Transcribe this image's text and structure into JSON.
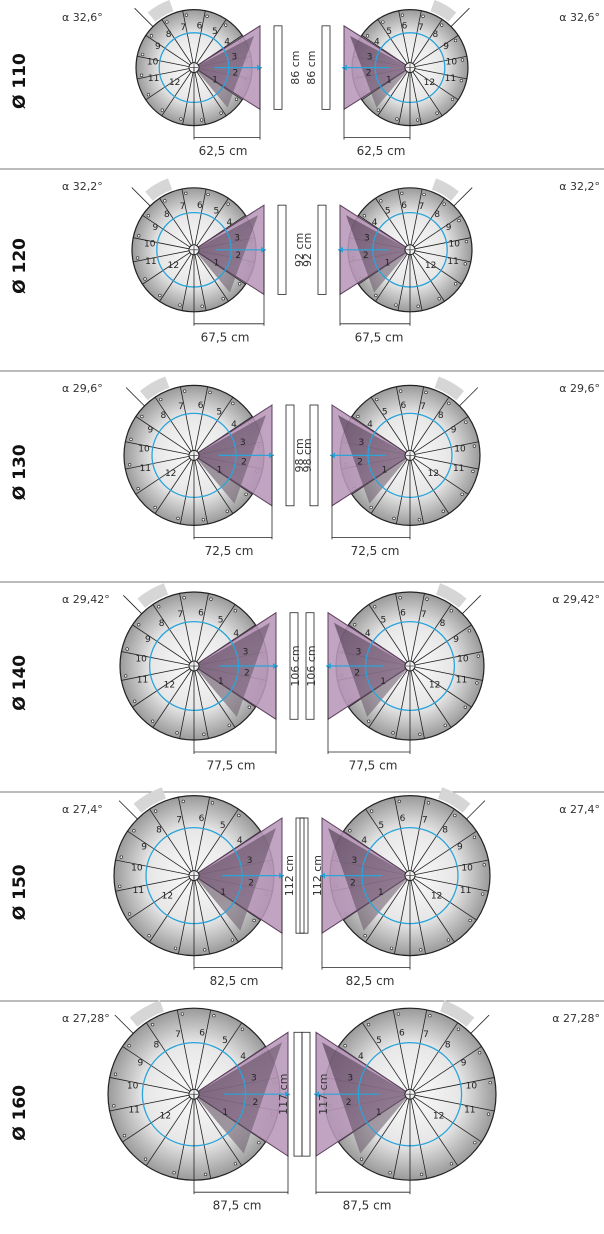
{
  "colors": {
    "tread_light": "#fafafa",
    "tread_dark": "#9a9a9a",
    "landing_fill": "#b896b9",
    "landing_stroke": "#5c3f5c",
    "landing_shadow": "#4b3350",
    "arc": "#2aa4da",
    "angle_band": "#d6d6d6",
    "divider": "#777777",
    "line": "#222222"
  },
  "rows": [
    {
      "diameter": "Ø 110",
      "angle": "α 32,6°",
      "height_label": "86 cm",
      "width_label": "62,5 cm",
      "steps_left": [
        "1",
        "2",
        "3",
        "4",
        "5",
        "6",
        "7",
        "8",
        "9",
        "10",
        "11",
        "12"
      ],
      "steps_right": [
        "1",
        "2",
        "3",
        "4",
        "5",
        "6",
        "7",
        "8",
        "9",
        "10",
        "11",
        "12"
      ]
    },
    {
      "diameter": "Ø 120",
      "angle": "α 32,2°",
      "height_label": "92 cm",
      "width_label": "67,5 cm",
      "steps_left": [
        "1",
        "2",
        "3",
        "4",
        "5",
        "6",
        "7",
        "8",
        "9",
        "10",
        "11",
        "12"
      ],
      "steps_right": [
        "1",
        "2",
        "3",
        "4",
        "5",
        "6",
        "7",
        "8",
        "9",
        "10",
        "11",
        "12"
      ]
    },
    {
      "diameter": "Ø 130",
      "angle": "α 29,6°",
      "height_label": "98 cm",
      "width_label": "72,5 cm",
      "steps_left": [
        "1",
        "2",
        "3",
        "4",
        "5",
        "6",
        "7",
        "8",
        "9",
        "10",
        "11",
        "12"
      ],
      "steps_right": [
        "1",
        "2",
        "3",
        "4",
        "5",
        "6",
        "7",
        "8",
        "9",
        "10",
        "11",
        "12"
      ]
    },
    {
      "diameter": "Ø 140",
      "angle": "α 29,42°",
      "height_label": "106 cm",
      "width_label": "77,5 cm",
      "steps_left": [
        "1",
        "2",
        "3",
        "4",
        "5",
        "6",
        "7",
        "8",
        "9",
        "10",
        "11",
        "12"
      ],
      "steps_right": [
        "1",
        "2",
        "3",
        "4",
        "5",
        "6",
        "7",
        "8",
        "9",
        "10",
        "11",
        "12"
      ]
    },
    {
      "diameter": "Ø 150",
      "angle": "α 27,4°",
      "height_label": "112 cm",
      "width_label": "82,5 cm",
      "steps_left": [
        "1",
        "2",
        "3",
        "4",
        "5",
        "6",
        "7",
        "8",
        "9",
        "10",
        "11",
        "12"
      ],
      "steps_right": [
        "1",
        "2",
        "3",
        "4",
        "5",
        "6",
        "7",
        "8",
        "9",
        "10",
        "11",
        "12"
      ]
    },
    {
      "diameter": "Ø 160",
      "angle": "α 27,28°",
      "height_label": "117 cm",
      "width_label": "87,5 cm",
      "steps_left": [
        "1",
        "2",
        "3",
        "4",
        "5",
        "6",
        "7",
        "8",
        "9",
        "10",
        "11",
        "12"
      ],
      "steps_right": [
        "1",
        "2",
        "3",
        "4",
        "5",
        "6",
        "7",
        "8",
        "9",
        "10",
        "11",
        "12"
      ]
    }
  ]
}
